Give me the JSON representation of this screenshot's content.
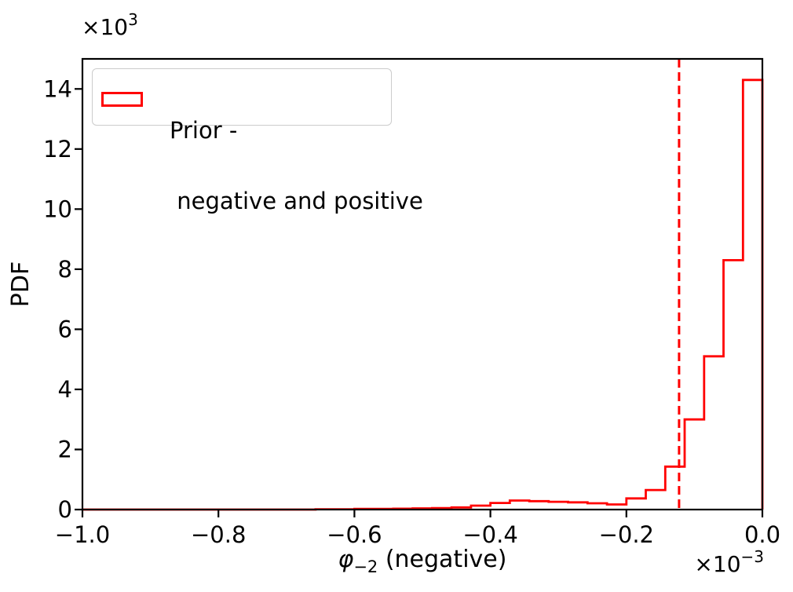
{
  "chart_data": {
    "type": "step-histogram",
    "title": "",
    "ylabel": "PDF",
    "xlabel_parts": {
      "symbol": "φ",
      "subscript": "−2",
      "rest": " (negative)"
    },
    "y_offset_text": {
      "base": "×10",
      "exponent": "3"
    },
    "x_offset_text": {
      "base": "×10",
      "exponent": "−3"
    },
    "xlim": [
      -1.0,
      0.0
    ],
    "ylim": [
      0.0,
      15.0
    ],
    "x_ticks": [
      -1.0,
      -0.8,
      -0.6,
      -0.4,
      -0.2,
      0.0
    ],
    "x_tick_labels": [
      "−1.0",
      "−0.8",
      "−0.6",
      "−0.4",
      "−0.2",
      "0.0"
    ],
    "y_ticks": [
      0,
      2,
      4,
      6,
      8,
      10,
      12,
      14
    ],
    "y_tick_labels": [
      "0",
      "2",
      "4",
      "6",
      "8",
      "10",
      "12",
      "14"
    ],
    "grid": false,
    "legend_position": "upper left",
    "legend": {
      "line1": "Prior -",
      "line2": " negative and positive",
      "swatch_color": "#ff0000"
    },
    "series": [
      {
        "name": "Prior - negative and positive",
        "style": "step",
        "color": "#ff0000",
        "x_units": "1e-3",
        "count_units": "1e3",
        "bin_start": -1.0,
        "bin_width": 0.02857142857,
        "counts": [
          0,
          0,
          0,
          0,
          0,
          0,
          0,
          0,
          0,
          0,
          0,
          0,
          0.01,
          0.01,
          0.02,
          0.02,
          0.03,
          0.04,
          0.05,
          0.07,
          0.13,
          0.22,
          0.3,
          0.28,
          0.26,
          0.24,
          0.21,
          0.17,
          0.37,
          0.65,
          1.43,
          3.0,
          5.1,
          8.3,
          14.3
        ]
      }
    ],
    "vline": {
      "x": -0.1225,
      "color": "#ff0000",
      "style": "dashed"
    },
    "colors": {
      "axis": "#000000",
      "series_red": "#ff0000",
      "legend_border": "#cccccc",
      "background": "#ffffff"
    }
  }
}
